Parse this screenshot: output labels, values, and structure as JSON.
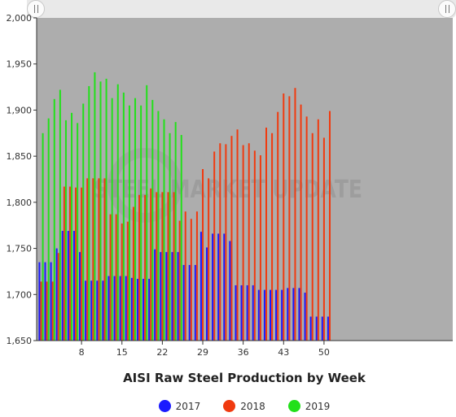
{
  "chart_data": {
    "type": "bar",
    "title": "",
    "xlabel": "AISI Raw Steel Production by Week",
    "ylabel": "",
    "ylim": [
      1650,
      2000
    ],
    "yticks": [
      "2,000",
      "1,950",
      "1,900",
      "1,850",
      "1,800",
      "1,750",
      "1,700",
      "1,650"
    ],
    "ytick_values": [
      2000,
      1950,
      1900,
      1850,
      1800,
      1750,
      1700,
      1650
    ],
    "xticks": [
      "8",
      "15",
      "22",
      "29",
      "36",
      "43",
      "50"
    ],
    "xtick_values": [
      8,
      15,
      22,
      29,
      36,
      43,
      50
    ],
    "x": [
      1,
      2,
      3,
      4,
      5,
      6,
      7,
      8,
      9,
      10,
      11,
      12,
      13,
      14,
      15,
      16,
      17,
      18,
      19,
      20,
      21,
      22,
      23,
      24,
      25,
      26,
      27,
      28,
      29,
      30,
      31,
      32,
      33,
      34,
      35,
      36,
      37,
      38,
      39,
      40,
      41,
      42,
      43,
      44,
      45,
      46,
      47,
      48,
      49,
      50,
      51,
      52
    ],
    "series": [
      {
        "name": "2017",
        "color": "#1a1aff",
        "values": [
          1735,
          1735,
          1735,
          1750,
          1769,
          1769,
          1769,
          1746,
          1715,
          1715,
          1715,
          1715,
          1720,
          1720,
          1720,
          1720,
          1718,
          1717,
          1717,
          1717,
          1749,
          1746,
          1746,
          1746,
          1746,
          1732,
          1732,
          1732,
          1768,
          1751,
          1766,
          1766,
          1766,
          1758,
          1710,
          1710,
          1710,
          1710,
          1705,
          1705,
          1705,
          1705,
          1705,
          1707,
          1707,
          1707,
          1702,
          1676,
          1676,
          1676,
          1676,
          null
        ]
      },
      {
        "name": "2018",
        "color": "#f03a0f",
        "values": [
          1714,
          1714,
          1714,
          1745,
          1817,
          1817,
          1816,
          1816,
          1826,
          1826,
          1826,
          1826,
          1787,
          1787,
          1777,
          1779,
          1795,
          1808,
          1808,
          1815,
          1811,
          1811,
          1811,
          1811,
          1780,
          1790,
          1782,
          1790,
          1836,
          1826,
          1855,
          1864,
          1863,
          1872,
          1879,
          1862,
          1864,
          1856,
          1851,
          1881,
          1875,
          1898,
          1918,
          1915,
          1924,
          1906,
          1893,
          1875,
          1890,
          1870,
          1899,
          null
        ]
      },
      {
        "name": "2019",
        "color": "#22e01a",
        "values": [
          1875,
          1891,
          1912,
          1922,
          1889,
          1897,
          1886,
          1907,
          1926,
          1941,
          1931,
          1934,
          1913,
          1928,
          1919,
          1905,
          1913,
          1905,
          1927,
          1911,
          1899,
          1890,
          1875,
          1887,
          1873,
          null,
          null,
          null,
          null,
          null,
          null,
          null,
          null,
          null,
          null,
          null,
          null,
          null,
          null,
          null,
          null,
          null,
          null,
          null,
          null,
          null,
          null,
          null,
          null,
          null,
          null,
          null
        ]
      }
    ],
    "legend": [
      "2017",
      "2018",
      "2019"
    ],
    "legend_position": "bottom",
    "grid": false,
    "watermark": "STEEL MARKET UPDATE",
    "plot_background": "#adadad"
  }
}
